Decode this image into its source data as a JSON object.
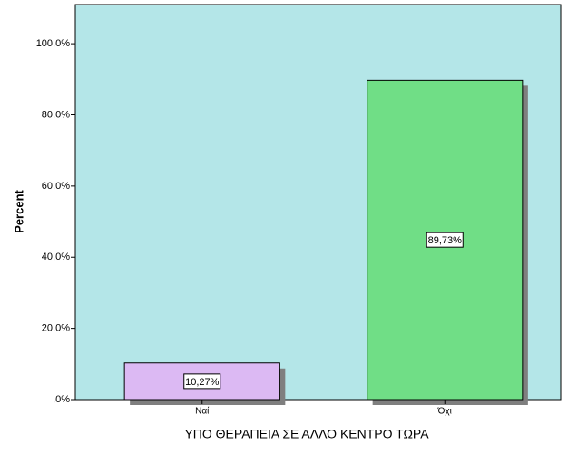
{
  "chart_data": {
    "type": "bar",
    "x_label": "ΥΠΟ ΘΕΡΑΠΕΙΑ ΣΕ ΑΛΛΟ ΚΕΝΤΡΟ ΤΩΡΑ",
    "y_label": "Percent",
    "categories": [
      "Ναί",
      "Όχι"
    ],
    "values": [
      10.27,
      89.73
    ],
    "value_labels": [
      "10,27%",
      "89,73%"
    ],
    "colors": [
      "#dcb9f3",
      "#70de86"
    ],
    "background": "#b4e6e8",
    "ylim": [
      0,
      111
    ],
    "yticks": [
      {
        "value": 0,
        "label": ",0%"
      },
      {
        "value": 20,
        "label": "20,0%"
      },
      {
        "value": 40,
        "label": "40,0%"
      },
      {
        "value": 60,
        "label": "60,0%"
      },
      {
        "value": 80,
        "label": "80,0%"
      },
      {
        "value": 100,
        "label": "100,0%"
      }
    ]
  }
}
